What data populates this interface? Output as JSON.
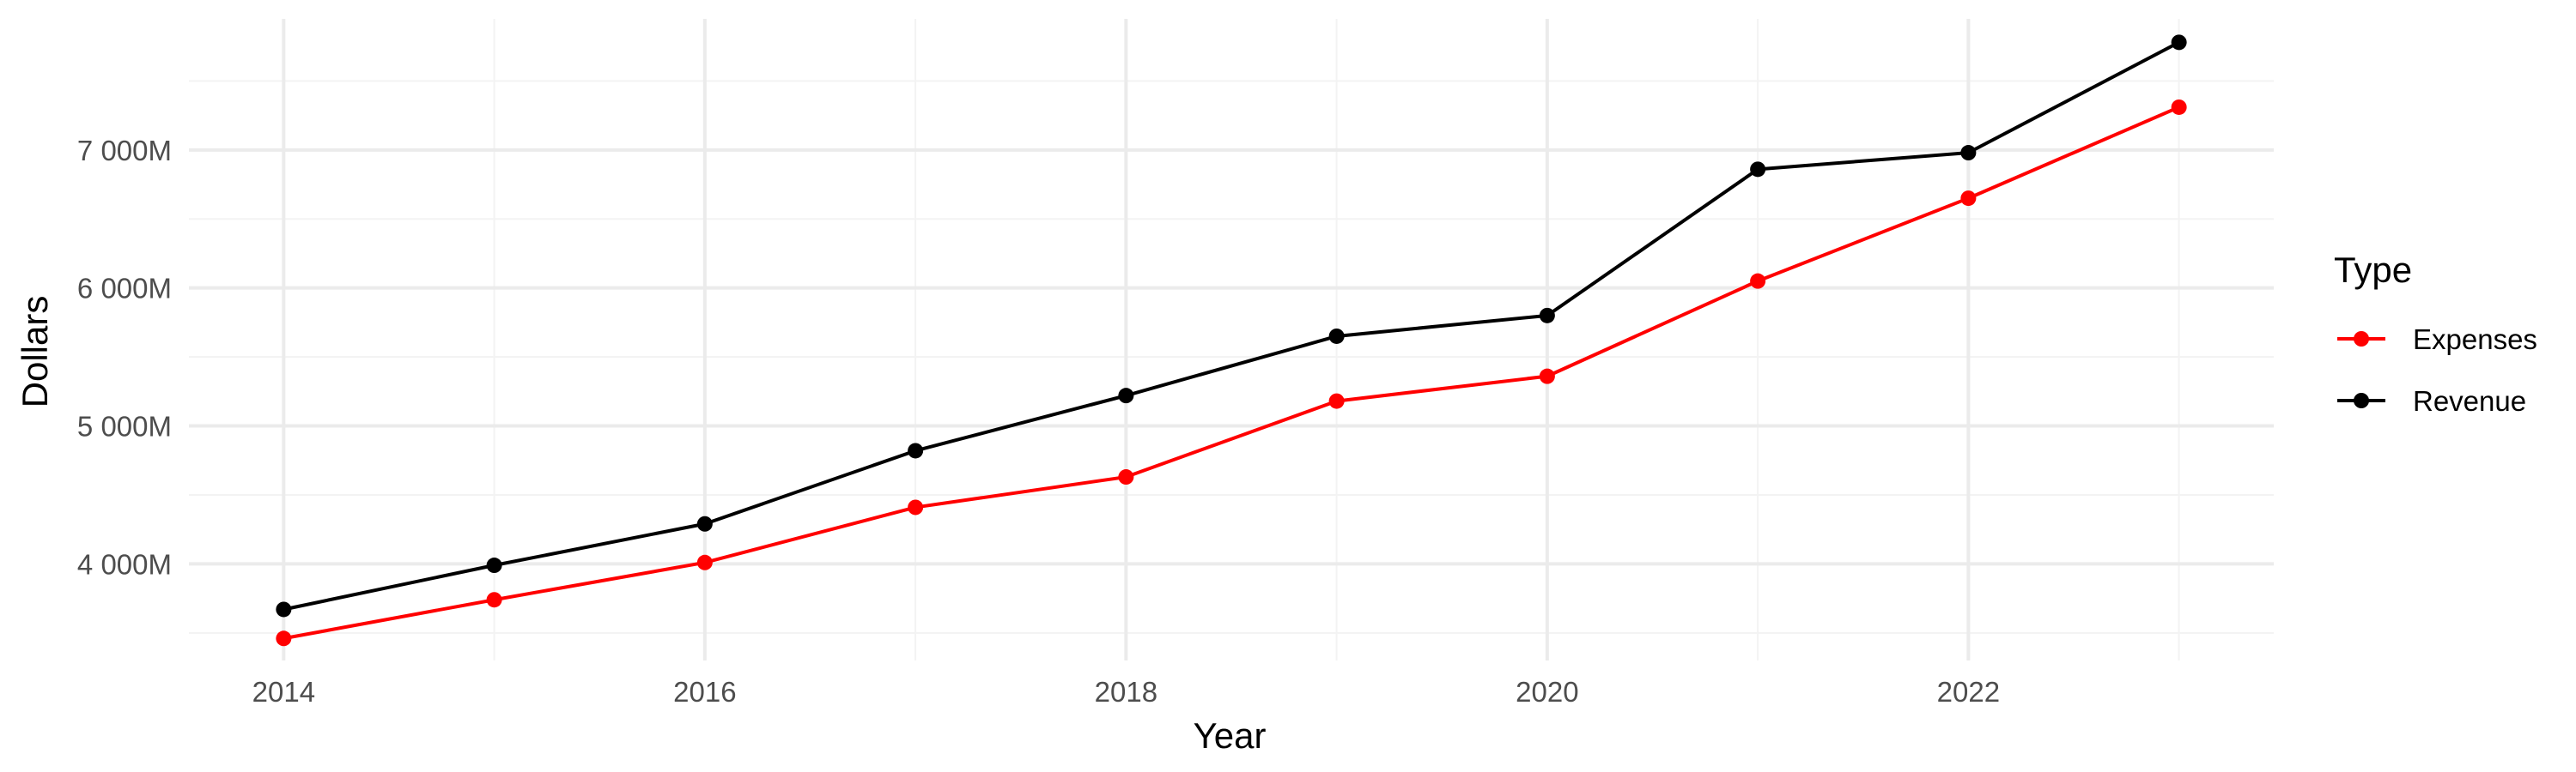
{
  "chart_data": {
    "type": "line",
    "title": "",
    "xlabel": "Year",
    "ylabel": "Dollars",
    "x": [
      2014,
      2015,
      2016,
      2017,
      2018,
      2019,
      2020,
      2021,
      2022,
      2023
    ],
    "series": [
      {
        "name": "Expenses",
        "color": "#ff0000",
        "values": [
          3460,
          3740,
          4010,
          4410,
          4630,
          5180,
          5360,
          6050,
          6650,
          7310
        ]
      },
      {
        "name": "Revenue",
        "color": "#000000",
        "values": [
          3670,
          3990,
          4290,
          4820,
          5220,
          5650,
          5800,
          6860,
          6980,
          7780
        ]
      }
    ],
    "xlim": [
      2013.55,
      2023.45
    ],
    "ylim": [
      3300,
      7950
    ],
    "x_ticks": [
      2014,
      2016,
      2018,
      2020,
      2022
    ],
    "x_tick_labels": [
      "2014",
      "2016",
      "2018",
      "2020",
      "2022"
    ],
    "y_ticks": [
      4000,
      5000,
      6000,
      7000
    ],
    "y_tick_labels": [
      "4 000M",
      "5 000M",
      "6 000M",
      "7 000M"
    ],
    "grid": true,
    "legend": {
      "title": "Type",
      "position": "right",
      "entries": [
        "Expenses",
        "Revenue"
      ]
    }
  }
}
